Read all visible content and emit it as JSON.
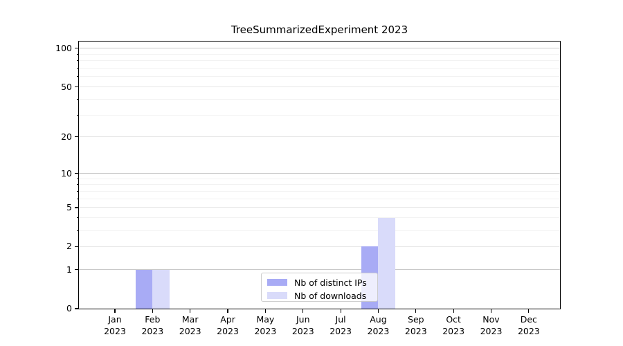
{
  "chart_data": {
    "type": "bar",
    "title": "TreeSummarizedExperiment 2023",
    "year": "2023",
    "months": [
      "Jan",
      "Feb",
      "Mar",
      "Apr",
      "May",
      "Jun",
      "Jul",
      "Aug",
      "Sep",
      "Oct",
      "Nov",
      "Dec"
    ],
    "series": [
      {
        "name": "Nb of distinct IPs",
        "color": "#a8abf5",
        "values": [
          0,
          1,
          0,
          0,
          0,
          0,
          0,
          2,
          0,
          0,
          0,
          0
        ]
      },
      {
        "name": "Nb of downloads",
        "color": "#d9dbfa",
        "values": [
          0,
          1,
          0,
          0,
          0,
          0,
          0,
          4,
          0,
          0,
          0,
          0
        ]
      }
    ],
    "yticks": [
      0,
      1,
      2,
      5,
      10,
      20,
      50,
      100
    ],
    "yticks_decade": [
      1,
      10,
      100
    ],
    "yticks_minor": [
      3,
      4,
      6,
      7,
      8,
      9,
      30,
      40,
      60,
      70,
      80,
      90
    ],
    "scale": "log10(1+v)",
    "ylim": [
      0,
      113
    ],
    "grid": true,
    "legend_position": "lower center",
    "colors": {
      "grid_decade": "#c9c9c9",
      "grid_major": "#e6e6e6",
      "grid_minor": "#f2f2f2",
      "axis": "#000000"
    }
  }
}
